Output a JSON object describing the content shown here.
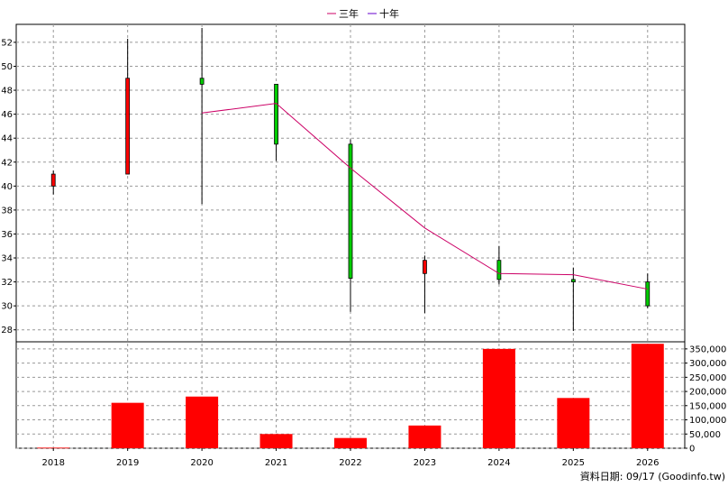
{
  "chart_data": {
    "type": "candlestick-volume",
    "categories": [
      "2018",
      "2019",
      "2020",
      "2021",
      "2022",
      "2023",
      "2024",
      "2025",
      "2026"
    ],
    "price_axis": {
      "min": 27,
      "max": 53.5,
      "ticks": [
        28,
        30,
        32,
        34,
        36,
        38,
        40,
        42,
        44,
        46,
        48,
        50,
        52
      ]
    },
    "volume_axis": {
      "min": 0,
      "max": 375000,
      "ticks": [
        0,
        50000,
        100000,
        150000,
        200000,
        250000,
        300000,
        350000
      ],
      "tick_labels": [
        "0",
        "50,000",
        "100,000",
        "150,000",
        "200,000",
        "250,000",
        "300,000",
        "350,000"
      ]
    },
    "candles": [
      {
        "year": "2018",
        "open": 40.0,
        "close": 41.0,
        "high": 41.3,
        "low": 39.3,
        "color": "red"
      },
      {
        "year": "2019",
        "open": 41.0,
        "close": 49.0,
        "high": 52.3,
        "low": 41.0,
        "color": "red"
      },
      {
        "year": "2020",
        "open": 49.0,
        "close": 48.5,
        "high": 53.2,
        "low": 38.5,
        "color": "green"
      },
      {
        "year": "2021",
        "open": 48.5,
        "close": 43.5,
        "high": 48.5,
        "low": 42.1,
        "color": "green"
      },
      {
        "year": "2022",
        "open": 43.5,
        "close": 32.3,
        "high": 43.9,
        "low": 29.5,
        "color": "green"
      },
      {
        "year": "2023",
        "open": 32.7,
        "close": 33.8,
        "high": 34.2,
        "low": 29.4,
        "color": "red"
      },
      {
        "year": "2024",
        "open": 33.8,
        "close": 32.2,
        "high": 35.0,
        "low": 31.8,
        "color": "green"
      },
      {
        "year": "2025",
        "open": 32.2,
        "close": 32.0,
        "high": 33.2,
        "low": 27.9,
        "color": "green"
      },
      {
        "year": "2026",
        "open": 32.0,
        "close": 30.0,
        "high": 32.7,
        "low": 29.8,
        "color": "green"
      }
    ],
    "volume": [
      2000,
      160000,
      182000,
      50000,
      36000,
      80000,
      350000,
      177000,
      368000
    ],
    "series": [
      {
        "name": "三年",
        "color": "#cc0066",
        "points": [
          {
            "year": "2020",
            "value": 46.1
          },
          {
            "year": "2021",
            "value": 46.9
          },
          {
            "year": "2022",
            "value": 41.5
          },
          {
            "year": "2023",
            "value": 36.5
          },
          {
            "year": "2024",
            "value": 32.7
          },
          {
            "year": "2025",
            "value": 32.6
          },
          {
            "year": "2026",
            "value": 31.4
          }
        ]
      },
      {
        "name": "十年",
        "color": "#6600cc",
        "points": []
      }
    ],
    "legend_position": "top-center",
    "grid": true,
    "colors": {
      "up": "#ff0000",
      "down": "#00cc00",
      "volume": "#ff0000",
      "grid": "#999999"
    }
  },
  "footer": {
    "source_label": "資料日期: 09/17  (Goodinfo.tw)"
  }
}
